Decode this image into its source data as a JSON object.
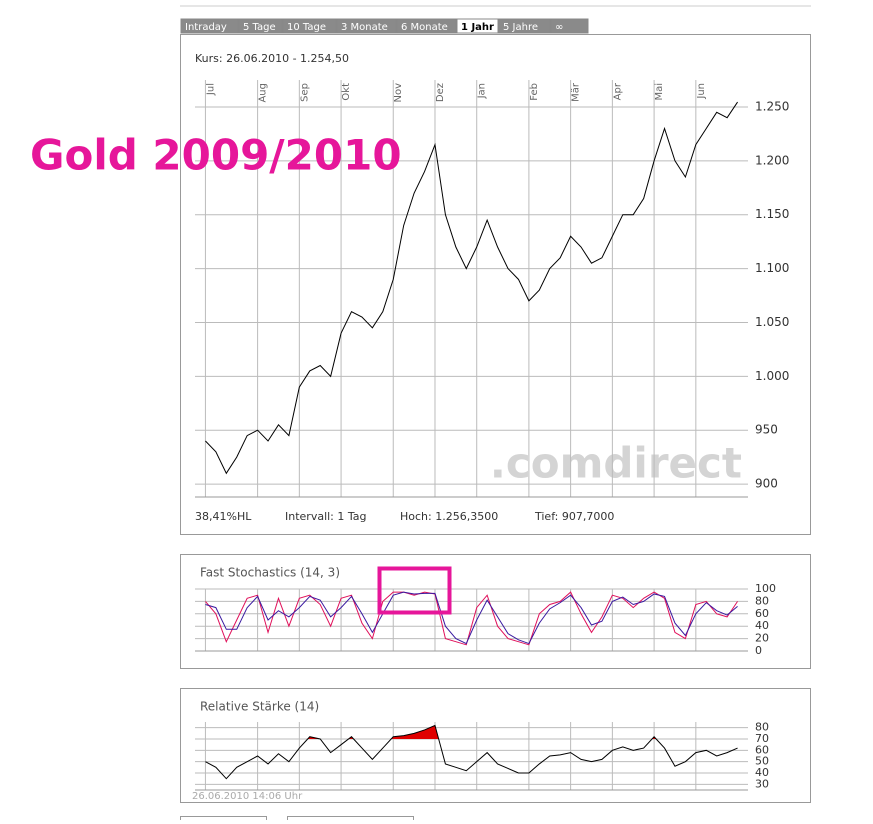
{
  "overlay_title": "Gold 2009/2010",
  "tabs": [
    "Intraday",
    "5 Tage",
    "10 Tage",
    "3 Monate",
    "6 Monate",
    "1 Jahr",
    "5 Jahre",
    "∞"
  ],
  "active_tab": 5,
  "quote": "Kurs: 26.06.2010 - 1.254,50",
  "stats": [
    "38,41%HL",
    "Intervall: 1 Tag",
    "Hoch: 1.256,3500",
    "Tief: 907,7000"
  ],
  "watermark": ".comdirect",
  "timestamp": "26.06.2010 14:06 Uhr",
  "chart_data": [
    {
      "type": "line",
      "xlim": [
        -1,
        52
      ],
      "xticks": [
        {
          "value": 0,
          "label": "Jul"
        },
        {
          "value": 5,
          "label": "Aug"
        },
        {
          "value": 9,
          "label": "Sep"
        },
        {
          "value": 13,
          "label": "Okt"
        },
        {
          "value": 18,
          "label": "Nov"
        },
        {
          "value": 22,
          "label": "Dez"
        },
        {
          "value": 26,
          "label": "Jan"
        },
        {
          "value": 31,
          "label": "Feb"
        },
        {
          "value": 35,
          "label": "Mär"
        },
        {
          "value": 39,
          "label": "Apr"
        },
        {
          "value": 43,
          "label": "Mai"
        },
        {
          "value": 47,
          "label": "Jun"
        }
      ],
      "ylim": [
        888,
        1275
      ],
      "yticks": [
        {
          "value": 900,
          "label": "900"
        },
        {
          "value": 950,
          "label": "950"
        },
        {
          "value": 1000,
          "label": "1.000"
        },
        {
          "value": 1050,
          "label": "1.050"
        },
        {
          "value": 1100,
          "label": "1.100"
        },
        {
          "value": 1150,
          "label": "1.150"
        },
        {
          "value": 1200,
          "label": "1.200"
        },
        {
          "value": 1250,
          "label": "1.250"
        }
      ],
      "grid": true,
      "series": [
        {
          "color": "#000000",
          "values": [
            940,
            930,
            910,
            925,
            945,
            950,
            940,
            955,
            945,
            990,
            1005,
            1010,
            1000,
            1040,
            1060,
            1055,
            1045,
            1060,
            1090,
            1140,
            1170,
            1190,
            1215,
            1150,
            1120,
            1100,
            1120,
            1145,
            1120,
            1100,
            1090,
            1070,
            1080,
            1100,
            1110,
            1130,
            1120,
            1105,
            1110,
            1130,
            1150,
            1150,
            1165,
            1200,
            1230,
            1200,
            1185,
            1215,
            1230,
            1245,
            1240,
            1254.5
          ]
        }
      ]
    },
    {
      "type": "line",
      "title": "Fast Stochastics (14, 3)",
      "ylim": [
        0,
        100
      ],
      "yticks": [
        0,
        20,
        40,
        60,
        80,
        100
      ],
      "grid": true,
      "series": [
        {
          "color": "#e0105a",
          "values": [
            80,
            60,
            15,
            50,
            85,
            90,
            30,
            85,
            40,
            85,
            90,
            75,
            40,
            85,
            90,
            45,
            20,
            80,
            95,
            95,
            90,
            95,
            92,
            20,
            15,
            10,
            70,
            90,
            40,
            20,
            15,
            10,
            60,
            75,
            80,
            95,
            60,
            30,
            55,
            90,
            85,
            70,
            85,
            95,
            85,
            30,
            20,
            75,
            80,
            60,
            55,
            80
          ]
        },
        {
          "color": "#3a1aa0",
          "values": [
            75,
            70,
            35,
            35,
            70,
            88,
            50,
            65,
            55,
            70,
            88,
            82,
            55,
            70,
            88,
            60,
            30,
            60,
            90,
            95,
            92,
            93,
            93,
            40,
            20,
            12,
            50,
            82,
            55,
            28,
            18,
            12,
            45,
            68,
            78,
            90,
            70,
            42,
            48,
            80,
            87,
            75,
            80,
            92,
            88,
            45,
            25,
            60,
            78,
            65,
            58,
            72
          ]
        }
      ]
    },
    {
      "type": "line",
      "title": "Relative Stärke (14)",
      "ylim": [
        25,
        85
      ],
      "yticks": [
        30,
        40,
        50,
        60,
        70,
        80
      ],
      "grid": true,
      "highlight_above": 70,
      "highlight_color": "#e00000",
      "series": [
        {
          "color": "#000000",
          "values": [
            50,
            45,
            35,
            45,
            50,
            55,
            48,
            57,
            50,
            62,
            72,
            70,
            58,
            65,
            72,
            62,
            52,
            62,
            72,
            73,
            75,
            78,
            82,
            48,
            45,
            42,
            50,
            58,
            48,
            44,
            40,
            40,
            48,
            55,
            56,
            58,
            52,
            50,
            52,
            60,
            63,
            60,
            62,
            72,
            62,
            46,
            50,
            58,
            60,
            55,
            58,
            62
          ]
        }
      ]
    }
  ]
}
